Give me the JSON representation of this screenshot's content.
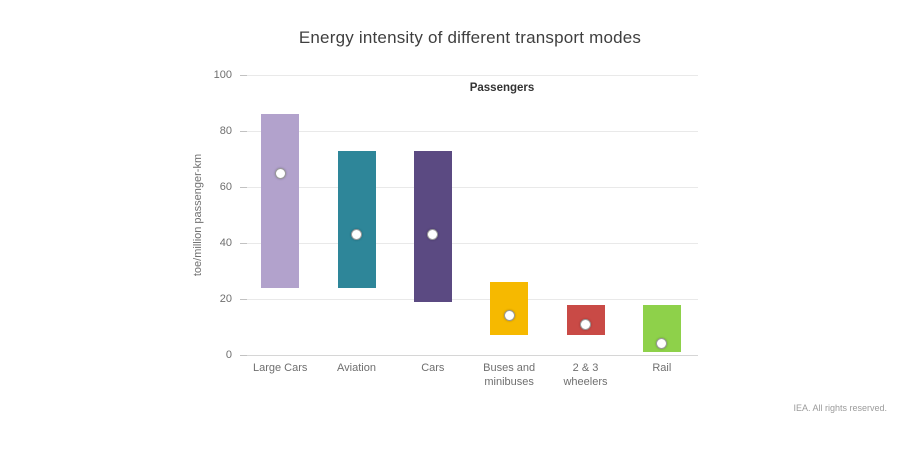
{
  "title": "Energy intensity of different transport modes",
  "footer": "IEA. All rights reserved.",
  "chart_data": {
    "type": "bar",
    "subtype": "floating-range-bars-with-average-dot",
    "title": "Energy intensity of different transport modes",
    "group_label": "Passengers",
    "xlabel": "",
    "ylabel": "toe/million passenger-km",
    "ylim": [
      0,
      100
    ],
    "yticks": [
      0,
      20,
      40,
      60,
      80,
      100
    ],
    "grid": true,
    "legend_position": "none",
    "categories": [
      "Large Cars",
      "Aviation",
      "Cars",
      "Buses and\nminibuses",
      "2 & 3\nwheelers",
      "Rail"
    ],
    "series": [
      {
        "name": "Range low-high",
        "values": [
          [
            24,
            86
          ],
          [
            24,
            73
          ],
          [
            19,
            73
          ],
          [
            7,
            26
          ],
          [
            7,
            18
          ],
          [
            1,
            18
          ]
        ]
      },
      {
        "name": "Average",
        "values": [
          65,
          43,
          43,
          14,
          11,
          4
        ]
      }
    ],
    "bar_colors": [
      "#b2a2cc",
      "#2e8699",
      "#5b4a82",
      "#f6b900",
      "#c94a46",
      "#8ed14a"
    ],
    "dot_color": "#ffffff",
    "dot_border_color": "#9a9a9a"
  }
}
